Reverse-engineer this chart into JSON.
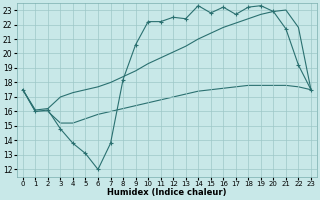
{
  "xlabel": "Humidex (Indice chaleur)",
  "xlim": [
    -0.5,
    23.5
  ],
  "ylim": [
    11.5,
    23.5
  ],
  "yticks": [
    12,
    13,
    14,
    15,
    16,
    17,
    18,
    19,
    20,
    21,
    22,
    23
  ],
  "xticks": [
    0,
    1,
    2,
    3,
    4,
    5,
    6,
    7,
    8,
    9,
    10,
    11,
    12,
    13,
    14,
    15,
    16,
    17,
    18,
    19,
    20,
    21,
    22,
    23
  ],
  "bg_color": "#c8e8e8",
  "line_color": "#2a7070",
  "grid_color": "#9dc8c8",
  "line1_x": [
    0,
    1,
    2,
    3,
    4,
    5,
    6,
    7,
    8,
    9,
    10,
    11,
    12,
    13,
    14,
    15,
    16,
    17,
    18,
    19,
    20,
    21,
    22,
    23
  ],
  "line1_y": [
    17.5,
    16.0,
    16.1,
    14.8,
    13.8,
    13.1,
    12.0,
    13.8,
    18.2,
    20.6,
    22.2,
    22.2,
    22.5,
    22.4,
    23.3,
    22.8,
    23.2,
    22.7,
    23.2,
    23.3,
    22.9,
    21.7,
    19.2,
    17.5
  ],
  "line2_x": [
    0,
    1,
    2,
    3,
    4,
    5,
    6,
    7,
    8,
    9,
    10,
    11,
    12,
    13,
    14,
    15,
    16,
    17,
    18,
    19,
    20,
    21,
    22,
    23
  ],
  "line2_y": [
    17.5,
    16.1,
    16.2,
    17.0,
    17.3,
    17.5,
    17.7,
    18.0,
    18.4,
    18.8,
    19.3,
    19.7,
    20.1,
    20.5,
    21.0,
    21.4,
    21.8,
    22.1,
    22.4,
    22.7,
    22.9,
    23.0,
    21.8,
    17.5
  ],
  "line3_x": [
    0,
    1,
    2,
    3,
    4,
    5,
    6,
    7,
    8,
    9,
    10,
    11,
    12,
    13,
    14,
    15,
    16,
    17,
    18,
    19,
    20,
    21,
    22,
    23
  ],
  "line3_y": [
    17.5,
    16.0,
    16.0,
    15.2,
    15.2,
    15.5,
    15.8,
    16.0,
    16.2,
    16.4,
    16.6,
    16.8,
    17.0,
    17.2,
    17.4,
    17.5,
    17.6,
    17.7,
    17.8,
    17.8,
    17.8,
    17.8,
    17.7,
    17.5
  ]
}
